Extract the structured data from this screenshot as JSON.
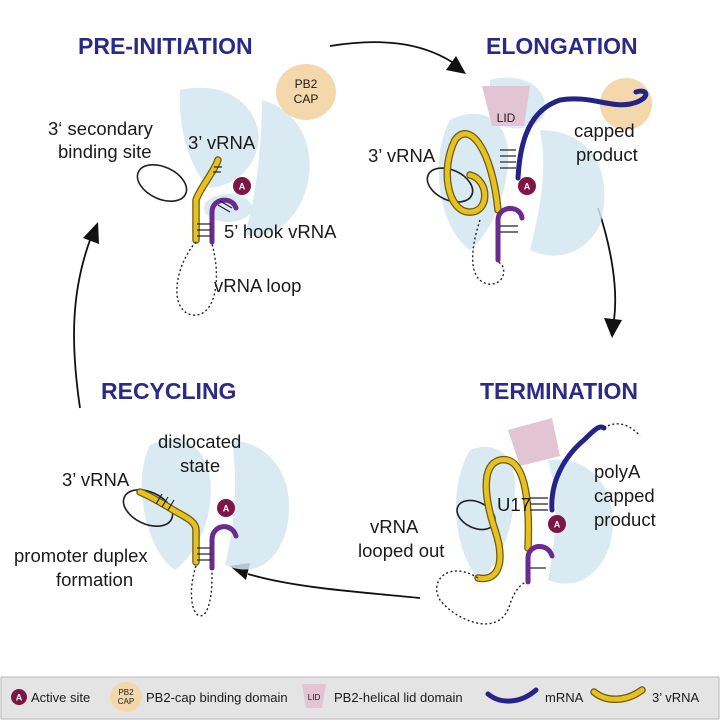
{
  "stages": {
    "pre_initiation": "PRE-INITIATION",
    "elongation": "ELONGATION",
    "termination": "TERMINATION",
    "recycling": "RECYCLING"
  },
  "labels": {
    "secondary_site_1": "3‘ secondary",
    "secondary_site_2": "binding site",
    "pre_vrna3": "3’ vRNA",
    "pb2_1": "PB2",
    "pb2_2": "CAP",
    "hook": "5’ hook vRNA",
    "vrna_loop": "vRNA loop",
    "el_lid": "LID",
    "el_vrna3": "3’ vRNA",
    "capped_1": "capped",
    "capped_2": "product",
    "polya_1": "polyA",
    "polya_2": "capped",
    "polya_3": "product",
    "u17": "U17",
    "looped_1": "vRNA",
    "looped_2": "looped out",
    "dislocated_1": "dislocated",
    "dislocated_2": "state",
    "rec_vrna3": "3’ vRNA",
    "duplex_1": "promoter duplex",
    "duplex_2": "formation",
    "active_marker": "A"
  },
  "legend": {
    "active_site": "Active site",
    "cap_icon_1": "PB2",
    "cap_icon_2": "CAP",
    "cap_domain": "PB2-cap binding domain",
    "lid_icon": "LID",
    "lid_domain": "PB2-helical lid domain",
    "mrna": "mRNA",
    "vrna3": "3’ vRNA"
  },
  "colors": {
    "title": "#2b2a86",
    "polymerase": "#d3e6f0",
    "cap_domain": "#f4d8ab",
    "lid_domain": "#e2c4d2",
    "mrna": "#232388",
    "vrna3": "#e7c022",
    "vrna5": "#6a2a8e",
    "active_site": "#7d1545"
  }
}
